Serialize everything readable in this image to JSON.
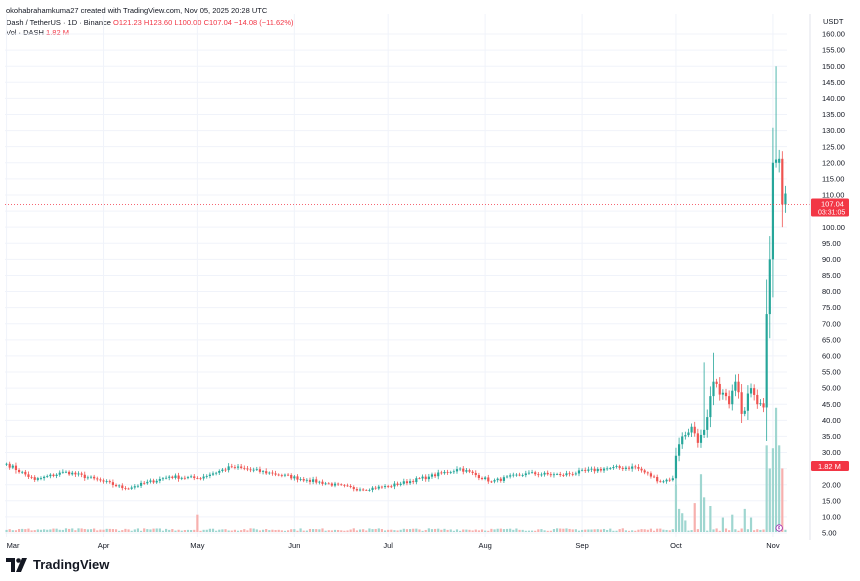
{
  "header": {
    "created_by": "okohabrahamkuma27 created with TradingView.com, Nov 05, 2025 20:28 UTC",
    "symbol_line": "Dash / TetherUS · 1D · Binance",
    "ohlc": {
      "open": "O121.23",
      "high": "H123.60",
      "low": "L100.00",
      "close": "C107.04",
      "change": "−14.08 (−11.62%)"
    },
    "volume_label": "Vol · DASH",
    "volume_value": "1.82 M"
  },
  "price_axis": {
    "currency": "USDT",
    "ticks": [
      "160.00",
      "155.00",
      "150.00",
      "145.00",
      "140.00",
      "135.00",
      "130.00",
      "125.00",
      "120.00",
      "115.00",
      "110.00",
      "105.00",
      "100.00",
      "95.00",
      "90.00",
      "85.00",
      "80.00",
      "75.00",
      "70.00",
      "65.00",
      "60.00",
      "55.00",
      "50.00",
      "45.00",
      "40.00",
      "35.00",
      "30.00",
      "25.00",
      "20.00",
      "15.00",
      "10.00",
      "5.00"
    ],
    "current_price_label": "107.04",
    "countdown_label": "03:31:05",
    "volume_badge": "1.82 M"
  },
  "time_axis": {
    "labels": [
      "Mar",
      "Apr",
      "May",
      "Jun",
      "Jul",
      "Aug",
      "Sep",
      "Oct",
      "Nov"
    ]
  },
  "brand": {
    "name": "TradingView"
  },
  "colors": {
    "up": "#26a69a",
    "down": "#ef5350",
    "vol_up": "#9fd6d0",
    "vol_down": "#f7b0ae",
    "price_badge": "#f23645"
  },
  "chart_data": {
    "type": "candlestick",
    "title": "Dash / TetherUS · 1D · Binance",
    "xlabel": "",
    "ylabel": "",
    "ylim": [
      5,
      160
    ],
    "x_start": "2025-03-01",
    "x_end": "2025-11-05",
    "last_price": 107.04,
    "anchors": [
      {
        "date": "2025-03-01",
        "close": 26.5
      },
      {
        "date": "2025-03-10",
        "close": 21.5
      },
      {
        "date": "2025-03-20",
        "close": 24.0
      },
      {
        "date": "2025-04-01",
        "close": 21.0
      },
      {
        "date": "2025-04-08",
        "close": 18.8
      },
      {
        "date": "2025-04-22",
        "close": 22.5
      },
      {
        "date": "2025-05-01",
        "close": 22.0
      },
      {
        "date": "2025-05-12",
        "close": 25.5
      },
      {
        "date": "2025-05-25",
        "close": 23.5
      },
      {
        "date": "2025-06-05",
        "close": 21.5
      },
      {
        "date": "2025-06-22",
        "close": 18.5
      },
      {
        "date": "2025-07-01",
        "close": 19.5
      },
      {
        "date": "2025-07-14",
        "close": 22.5
      },
      {
        "date": "2025-07-24",
        "close": 25.0
      },
      {
        "date": "2025-08-03",
        "close": 21.0
      },
      {
        "date": "2025-08-14",
        "close": 23.5
      },
      {
        "date": "2025-08-25",
        "close": 23.0
      },
      {
        "date": "2025-09-08",
        "close": 25.0
      },
      {
        "date": "2025-09-18",
        "close": 25.5
      },
      {
        "date": "2025-09-26",
        "close": 21.0
      },
      {
        "date": "2025-09-30",
        "close": 22.0
      },
      {
        "date": "2025-10-01",
        "close": 29.0
      },
      {
        "date": "2025-10-03",
        "close": 35.0
      },
      {
        "date": "2025-10-06",
        "close": 38.0
      },
      {
        "date": "2025-10-08",
        "close": 33.0
      },
      {
        "date": "2025-10-11",
        "close": 41.0
      },
      {
        "date": "2025-10-13",
        "close": 52.0
      },
      {
        "date": "2025-10-15",
        "close": 48.0
      },
      {
        "date": "2025-10-18",
        "close": 45.0
      },
      {
        "date": "2025-10-20",
        "close": 52.0
      },
      {
        "date": "2025-10-22",
        "close": 42.0
      },
      {
        "date": "2025-10-25",
        "close": 50.0
      },
      {
        "date": "2025-10-27",
        "close": 45.0
      },
      {
        "date": "2025-10-29",
        "close": 44.0
      },
      {
        "date": "2025-10-30",
        "close": 73.0
      },
      {
        "date": "2025-10-31",
        "close": 90.0
      },
      {
        "date": "2025-11-01",
        "close": 120.0
      },
      {
        "date": "2025-11-02",
        "close": 121.0
      },
      {
        "date": "2025-11-03",
        "close": 121.23
      },
      {
        "date": "2025-11-04",
        "close": 107.04
      }
    ],
    "volume_ylim": [
      0,
      45
    ],
    "volume_spikes": [
      {
        "date": "2025-05-01",
        "volume": 6.0
      },
      {
        "date": "2025-10-01",
        "volume": 16.0
      },
      {
        "date": "2025-10-02",
        "volume": 8.0
      },
      {
        "date": "2025-10-03",
        "volume": 6.5
      },
      {
        "date": "2025-10-04",
        "volume": 4.0
      },
      {
        "date": "2025-10-07",
        "volume": 10.0
      },
      {
        "date": "2025-10-09",
        "volume": 20.0
      },
      {
        "date": "2025-10-10",
        "volume": 12.0
      },
      {
        "date": "2025-10-12",
        "volume": 9.0
      },
      {
        "date": "2025-10-16",
        "volume": 5.0
      },
      {
        "date": "2025-10-19",
        "volume": 6.0
      },
      {
        "date": "2025-10-23",
        "volume": 8.0
      },
      {
        "date": "2025-10-25",
        "volume": 5.0
      },
      {
        "date": "2025-10-30",
        "volume": 30.0
      },
      {
        "date": "2025-10-31",
        "volume": 22.0
      },
      {
        "date": "2025-11-01",
        "volume": 29.0
      },
      {
        "date": "2025-11-02",
        "volume": 43.0
      },
      {
        "date": "2025-11-03",
        "volume": 30.0
      },
      {
        "date": "2025-11-04",
        "volume": 22.0
      }
    ]
  }
}
